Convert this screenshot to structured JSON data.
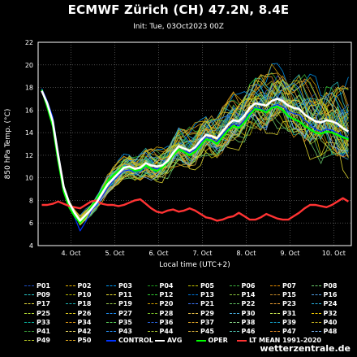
{
  "title": "ECMWF Zürich (CH) 47.2N, 8.4E",
  "subtitle": "Init: Tue, 03Oct2023 00Z",
  "credit": "wetterzentrale.de",
  "colors": {
    "background": "#000000",
    "grid": "#7a7a7a",
    "avg": "#ffffff",
    "oper": "#00ff00",
    "control": "#0033ff",
    "lt_mean": "#ff3333"
  },
  "chart_data": {
    "type": "line",
    "title": "ECMWF Zürich (CH) 47.2N, 8.4E",
    "subtitle": "Init: Tue, 03Oct2023 00Z",
    "xlabel": "Local time (UTC+2)",
    "ylabel": "850 hPa Temp. (°C)",
    "ylim": [
      4,
      22
    ],
    "yticks": [
      4,
      6,
      8,
      10,
      12,
      14,
      16,
      18,
      20,
      22
    ],
    "xlim": [
      3.25,
      10.4
    ],
    "xticks": [
      {
        "x": 4,
        "label": "4. Oct"
      },
      {
        "x": 5,
        "label": "5. Oct"
      },
      {
        "x": 6,
        "label": "6. Oct"
      },
      {
        "x": 7,
        "label": "7. Oct"
      },
      {
        "x": 8,
        "label": "8. Oct"
      },
      {
        "x": 9,
        "label": "9. Oct"
      },
      {
        "x": 10,
        "label": "10. Oct"
      }
    ],
    "grid": true,
    "x": [
      3.333,
      3.458,
      3.583,
      3.708,
      3.833,
      3.958,
      4.083,
      4.208,
      4.333,
      4.458,
      4.583,
      4.708,
      4.833,
      4.958,
      5.083,
      5.208,
      5.333,
      5.458,
      5.583,
      5.708,
      5.833,
      5.958,
      6.083,
      6.208,
      6.333,
      6.458,
      6.583,
      6.708,
      6.833,
      6.958,
      7.083,
      7.208,
      7.333,
      7.458,
      7.583,
      7.708,
      7.833,
      7.958,
      8.083,
      8.208,
      8.333,
      8.458,
      8.583,
      8.708,
      8.833,
      8.958,
      9.083,
      9.208,
      9.333,
      9.458,
      9.583,
      9.708,
      9.833,
      9.958,
      10.083,
      10.208,
      10.333
    ],
    "series": [
      {
        "name": "AVG",
        "color": "#ffffff",
        "values": [
          17.7,
          16.6,
          15.0,
          12.0,
          9.2,
          7.8,
          6.9,
          6.2,
          6.7,
          7.2,
          7.8,
          8.6,
          9.4,
          9.9,
          10.4,
          10.9,
          11.0,
          10.8,
          10.9,
          11.3,
          11.1,
          11.0,
          11.1,
          11.5,
          12.2,
          12.8,
          12.6,
          12.4,
          12.7,
          13.3,
          13.8,
          13.7,
          13.5,
          14.1,
          14.7,
          15.1,
          15.0,
          15.5,
          16.2,
          16.6,
          16.5,
          16.4,
          16.8,
          17.0,
          16.8,
          16.4,
          16.2,
          16.1,
          15.6,
          15.3,
          15.0,
          14.9,
          15.1,
          15.0,
          14.8,
          14.4,
          14.1
        ]
      },
      {
        "name": "OPER",
        "color": "#00ff00",
        "values": [
          17.8,
          16.3,
          14.6,
          11.5,
          8.8,
          7.4,
          6.6,
          6.0,
          6.6,
          7.4,
          8.1,
          8.9,
          9.7,
          10.2,
          10.6,
          11.0,
          10.9,
          10.6,
          10.7,
          11.1,
          10.8,
          10.6,
          10.9,
          11.4,
          12.0,
          12.5,
          12.3,
          12.0,
          12.3,
          12.9,
          13.4,
          13.3,
          13.0,
          13.6,
          14.2,
          14.6,
          14.4,
          14.9,
          15.6,
          16.1,
          16.0,
          15.8,
          16.2,
          16.3,
          16.0,
          15.5,
          15.2,
          15.0,
          14.6,
          14.3,
          14.0,
          13.9,
          14.1,
          14.0,
          13.8,
          13.6,
          13.4
        ]
      },
      {
        "name": "CONTROL",
        "color": "#0033ff",
        "values": [
          17.9,
          16.8,
          15.4,
          12.3,
          9.3,
          7.6,
          6.5,
          5.3,
          6.1,
          7.0,
          7.6,
          8.3,
          9.1,
          9.7,
          10.2,
          10.6,
          10.7,
          10.5,
          10.6,
          11.0,
          10.9,
          10.8,
          10.9,
          11.3,
          12.0,
          12.5,
          12.4,
          12.2,
          12.5,
          13.1,
          13.6,
          13.5,
          13.2,
          13.8,
          14.4,
          14.8,
          14.6,
          15.1,
          15.8,
          16.2,
          16.1,
          15.9,
          16.3,
          16.5,
          16.3,
          15.9,
          15.7,
          15.6,
          15.1,
          14.7,
          14.3,
          14.1,
          14.3,
          14.2,
          14.0,
          13.7,
          13.5
        ]
      },
      {
        "name": "LT MEAN 1991-2020",
        "color": "#ff3333",
        "values": [
          7.6,
          7.6,
          7.7,
          7.9,
          7.7,
          7.5,
          7.4,
          7.3,
          7.6,
          7.9,
          8.0,
          7.7,
          7.6,
          7.6,
          7.5,
          7.6,
          7.8,
          8.0,
          8.1,
          7.7,
          7.3,
          7.0,
          6.9,
          7.1,
          7.2,
          7.0,
          7.1,
          7.3,
          7.1,
          6.8,
          6.5,
          6.4,
          6.2,
          6.3,
          6.5,
          6.6,
          6.9,
          6.6,
          6.3,
          6.3,
          6.5,
          6.8,
          6.6,
          6.4,
          6.3,
          6.3,
          6.6,
          6.9,
          7.3,
          7.6,
          7.6,
          7.5,
          7.4,
          7.6,
          7.9,
          8.2,
          7.9
        ]
      }
    ],
    "ensemble": {
      "members": [
        "P01",
        "P02",
        "P03",
        "P04",
        "P05",
        "P06",
        "P07",
        "P08",
        "P09",
        "P10",
        "P11",
        "P12",
        "P13",
        "P14",
        "P15",
        "P16",
        "P17",
        "P18",
        "P19",
        "P20",
        "P21",
        "P22",
        "P23",
        "P24",
        "P25",
        "P26",
        "P27",
        "P28",
        "P29",
        "P30",
        "P31",
        "P32",
        "P33",
        "P34",
        "P35",
        "P36",
        "P37",
        "P38",
        "P39",
        "P40",
        "P41",
        "P42",
        "P43",
        "P44",
        "P45",
        "P46",
        "P47",
        "P48",
        "P49",
        "P50"
      ],
      "colors": [
        "#1e50c8",
        "#e6b400",
        "#00a0ff",
        "#1ea01e",
        "#c8c800",
        "#3cb43c",
        "#e68c00",
        "#6ed26e",
        "#28c8c8",
        "#b4b400",
        "#f0e632",
        "#32d232",
        "#0078dc",
        "#8cc83c",
        "#c88c28",
        "#50a0e6",
        "#e6dc3c",
        "#1eb4b4",
        "#a0d250",
        "#d2a000",
        "#3c78ff",
        "#64c864",
        "#f0a032",
        "#28b4e6",
        "#b4dc32",
        "#dcc81e",
        "#1e8cf0",
        "#78be28",
        "#e6be46",
        "#46aadc",
        "#c8e650",
        "#f0c800",
        "#0ab4a0",
        "#dc9614",
        "#5ad25a",
        "#2864dc",
        "#e6aa28",
        "#8cdc8c",
        "#14a0c8",
        "#c8b41e",
        "#3ca03c",
        "#f0dc64",
        "#2896ff",
        "#aac832",
        "#dcb43c",
        "#50c8b4",
        "#e68c28",
        "#78b4f0",
        "#c8dc28",
        "#f0b41e"
      ],
      "spread_offsets": [
        0.0,
        0.0,
        0.0,
        0.1,
        0.2,
        0.2,
        0.3,
        0.5,
        0.6,
        0.7,
        0.8,
        0.9,
        1.0,
        1.1,
        1.2,
        1.3,
        1.4,
        1.4,
        1.5,
        1.5,
        1.6,
        1.7,
        1.7,
        1.8,
        1.9,
        2.0,
        2.0,
        2.1,
        2.1,
        2.2,
        2.3,
        2.3,
        2.4,
        2.4,
        2.5,
        2.5,
        2.6,
        2.6,
        2.7,
        2.7,
        2.8,
        2.8,
        2.9,
        2.9,
        3.0,
        3.0,
        3.1,
        3.2,
        3.2,
        3.3,
        3.4,
        3.5,
        3.6,
        3.7,
        3.8,
        3.9,
        4.0
      ]
    }
  },
  "legend": {
    "rows": [
      [
        {
          "label": "P01",
          "color": "#1e50c8",
          "dash": true
        },
        {
          "label": "P02",
          "color": "#e6b400",
          "dash": true
        },
        {
          "label": "P03",
          "color": "#00a0ff",
          "dash": true
        },
        {
          "label": "P04",
          "color": "#1ea01e",
          "dash": true
        },
        {
          "label": "P05",
          "color": "#c8c800",
          "dash": true
        },
        {
          "label": "P06",
          "color": "#3cb43c",
          "dash": true
        },
        {
          "label": "P07",
          "color": "#e68c00",
          "dash": true
        },
        {
          "label": "P08",
          "color": "#6ed26e",
          "dash": true
        }
      ],
      [
        {
          "label": "P09",
          "color": "#28c8c8",
          "dash": true
        },
        {
          "label": "P10",
          "color": "#b4b400",
          "dash": true
        },
        {
          "label": "P11",
          "color": "#f0e632",
          "dash": true
        },
        {
          "label": "P12",
          "color": "#32d232",
          "dash": true
        },
        {
          "label": "P13",
          "color": "#0078dc",
          "dash": true
        },
        {
          "label": "P14",
          "color": "#8cc83c",
          "dash": true
        },
        {
          "label": "P15",
          "color": "#c88c28",
          "dash": true
        },
        {
          "label": "P16",
          "color": "#50a0e6",
          "dash": true
        }
      ],
      [
        {
          "label": "P17",
          "color": "#e6dc3c",
          "dash": true
        },
        {
          "label": "P18",
          "color": "#1eb4b4",
          "dash": true
        },
        {
          "label": "P19",
          "color": "#a0d250",
          "dash": true
        },
        {
          "label": "P20",
          "color": "#d2a000",
          "dash": true
        },
        {
          "label": "P21",
          "color": "#3c78ff",
          "dash": true
        },
        {
          "label": "P22",
          "color": "#64c864",
          "dash": true
        },
        {
          "label": "P23",
          "color": "#f0a032",
          "dash": true
        },
        {
          "label": "P24",
          "color": "#28b4e6",
          "dash": true
        }
      ],
      [
        {
          "label": "P25",
          "color": "#b4dc32",
          "dash": true
        },
        {
          "label": "P26",
          "color": "#dcc81e",
          "dash": true
        },
        {
          "label": "P27",
          "color": "#1e8cf0",
          "dash": true
        },
        {
          "label": "P28",
          "color": "#78be28",
          "dash": true
        },
        {
          "label": "P29",
          "color": "#e6be46",
          "dash": true
        },
        {
          "label": "P30",
          "color": "#46aadc",
          "dash": true
        },
        {
          "label": "P31",
          "color": "#c8e650",
          "dash": true
        },
        {
          "label": "P32",
          "color": "#f0c800",
          "dash": true
        }
      ],
      [
        {
          "label": "P33",
          "color": "#0ab4a0",
          "dash": true
        },
        {
          "label": "P34",
          "color": "#dc9614",
          "dash": true
        },
        {
          "label": "P35",
          "color": "#5ad25a",
          "dash": true
        },
        {
          "label": "P36",
          "color": "#2864dc",
          "dash": true
        },
        {
          "label": "P37",
          "color": "#e6aa28",
          "dash": true
        },
        {
          "label": "P38",
          "color": "#8cdc8c",
          "dash": true
        },
        {
          "label": "P39",
          "color": "#14a0c8",
          "dash": true
        },
        {
          "label": "P40",
          "color": "#c8b41e",
          "dash": true
        }
      ],
      [
        {
          "label": "P41",
          "color": "#3ca03c",
          "dash": true
        },
        {
          "label": "P42",
          "color": "#f0dc64",
          "dash": true
        },
        {
          "label": "P43",
          "color": "#2896ff",
          "dash": true
        },
        {
          "label": "P44",
          "color": "#aac832",
          "dash": true
        },
        {
          "label": "P45",
          "color": "#dcb43c",
          "dash": true
        },
        {
          "label": "P46",
          "color": "#50c8b4",
          "dash": true
        },
        {
          "label": "P47",
          "color": "#e68c28",
          "dash": true
        },
        {
          "label": "P48",
          "color": "#78b4f0",
          "dash": true
        }
      ],
      [
        {
          "label": "P49",
          "color": "#c8dc28",
          "dash": true
        },
        {
          "label": "P50",
          "color": "#f0b41e",
          "dash": true
        },
        {
          "label": "CONTROL",
          "color": "#0033ff",
          "dash": false,
          "wide": true
        },
        {
          "label": "AVG",
          "color": "#ffffff",
          "dash": false
        },
        {
          "label": "OPER",
          "color": "#00ff00",
          "dash": false
        },
        {
          "label": "LT MEAN 1991-2020",
          "color": "#ff3333",
          "dash": false,
          "wide": true
        }
      ]
    ]
  }
}
